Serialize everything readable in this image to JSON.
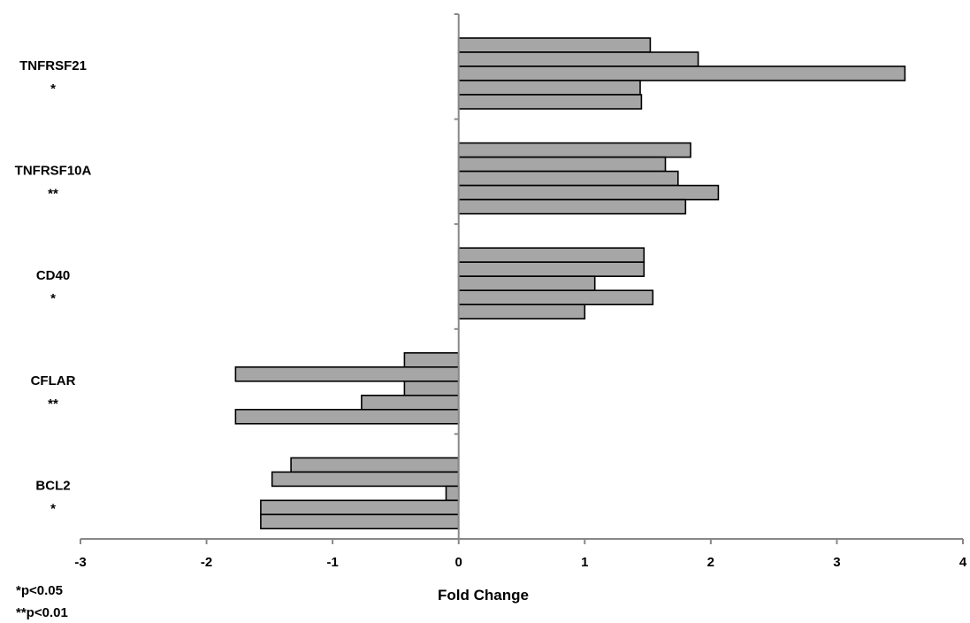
{
  "chart_data": {
    "type": "bar",
    "orientation": "horizontal",
    "categories": [
      "TNFRSF21",
      "TNFRSF10A",
      "CD40",
      "CFLAR",
      "BCL2"
    ],
    "significance": [
      "*",
      "**",
      "*",
      "**",
      "*"
    ],
    "values": [
      [
        1.52,
        1.9,
        3.54,
        1.44,
        1.45
      ],
      [
        1.84,
        1.64,
        1.74,
        2.06,
        1.8
      ],
      [
        1.47,
        1.47,
        1.08,
        1.54,
        1.0
      ],
      [
        -0.43,
        -1.77,
        -0.43,
        -0.77,
        -1.77
      ],
      [
        -1.33,
        -1.48,
        -0.1,
        -1.57,
        -1.57
      ]
    ],
    "xlabel": "Fold Change",
    "xlim": [
      -3,
      4
    ],
    "xticks": [
      "-3",
      "-2",
      "-1",
      "0",
      "1",
      "2",
      "3",
      "4"
    ],
    "bar_color": "#a6a6a6",
    "grid": false,
    "footnotes": [
      "*p<0.05",
      "**p<0.01"
    ]
  }
}
